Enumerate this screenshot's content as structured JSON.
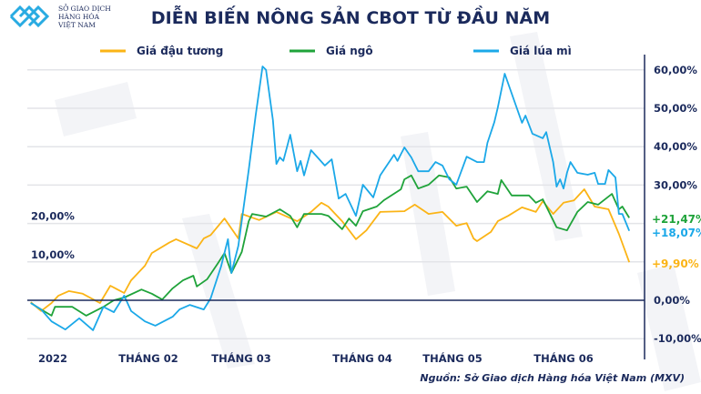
{
  "logo": {
    "lines": [
      "SỞ GIAO DỊCH",
      "HÀNG HÓA",
      "VIỆT NAM"
    ],
    "color": "#29abe2"
  },
  "chart_data": {
    "type": "line",
    "title": "DIỄN BIẾN NÔNG SẢN CBOT TỪ ĐẦU NĂM",
    "source": "Nguồn: Sở Giao dịch Hàng hóa Việt Nam (MXV)",
    "x_tick_labels": [
      "2022",
      "THÁNG 02",
      "THÁNG 03",
      "THÁNG 04",
      "THÁNG 05",
      "THÁNG 06"
    ],
    "y_ticks": [
      60,
      50,
      40,
      30,
      20,
      10,
      0,
      -10
    ],
    "y_tick_labels": [
      "60,00%",
      "50,00%",
      "40,00%",
      "30,00%",
      "20,00%",
      "10,00%",
      "0,00%",
      "-10,00%"
    ],
    "ylim": [
      -10,
      60
    ],
    "ylabel": "",
    "xlabel": "",
    "grid": true,
    "legend_placement": "top",
    "x_year": 2022,
    "series": [
      {
        "name": "Giá đậu tương",
        "color": "#fbb416",
        "end_label": "+9,90%",
        "points": [
          [
            "01-02",
            -0.5
          ],
          [
            "01-05",
            -2.8
          ],
          [
            "01-08",
            -0.7
          ],
          [
            "01-10",
            1.2
          ],
          [
            "01-13",
            2.4
          ],
          [
            "01-17",
            1.7
          ],
          [
            "01-22",
            -0.7
          ],
          [
            "01-25",
            3.8
          ],
          [
            "01-29",
            1.9
          ],
          [
            "01-31",
            5.2
          ],
          [
            "02-04",
            9
          ],
          [
            "02-06",
            12.3
          ],
          [
            "02-11",
            15
          ],
          [
            "02-13",
            15.9
          ],
          [
            "02-19",
            13.5
          ],
          [
            "02-21",
            16.1
          ],
          [
            "02-23",
            17
          ],
          [
            "02-27",
            21.3
          ],
          [
            "03-03",
            16.1
          ],
          [
            "03-04",
            22.5
          ],
          [
            "03-09",
            20.9
          ],
          [
            "03-14",
            23
          ],
          [
            "03-20",
            20.6
          ],
          [
            "03-24",
            23
          ],
          [
            "03-27",
            25.4
          ],
          [
            "03-29",
            24.4
          ],
          [
            "04-02",
            20.6
          ],
          [
            "04-06",
            15.9
          ],
          [
            "04-09",
            18.2
          ],
          [
            "04-13",
            23
          ],
          [
            "04-20",
            23.2
          ],
          [
            "04-23",
            24.9
          ],
          [
            "04-27",
            22.5
          ],
          [
            "05-01",
            23
          ],
          [
            "05-05",
            19.4
          ],
          [
            "05-08",
            20.1
          ],
          [
            "05-10",
            16.1
          ],
          [
            "05-11",
            15.4
          ],
          [
            "05-15",
            17.8
          ],
          [
            "05-17",
            20.6
          ],
          [
            "05-20",
            22
          ],
          [
            "05-24",
            24.2
          ],
          [
            "05-28",
            23
          ],
          [
            "05-30",
            25.8
          ],
          [
            "06-02",
            22.5
          ],
          [
            "06-05",
            25.4
          ],
          [
            "06-08",
            26
          ],
          [
            "06-11",
            28.9
          ],
          [
            "06-14",
            24.4
          ],
          [
            "06-18",
            23.7
          ],
          [
            "06-21",
            17.3
          ],
          [
            "06-24",
            9.9
          ]
        ]
      },
      {
        "name": "Giá ngô",
        "color": "#1fa33a",
        "end_label": "+21,47%",
        "points": [
          [
            "01-02",
            -0.7
          ],
          [
            "01-05",
            -2.4
          ],
          [
            "01-08",
            -4
          ],
          [
            "01-09",
            -1.7
          ],
          [
            "01-14",
            -1.7
          ],
          [
            "01-18",
            -4
          ],
          [
            "01-23",
            -1.7
          ],
          [
            "01-26",
            0
          ],
          [
            "01-29",
            0.7
          ],
          [
            "02-03",
            2.8
          ],
          [
            "02-06",
            1.7
          ],
          [
            "02-09",
            0.2
          ],
          [
            "02-12",
            3.1
          ],
          [
            "02-15",
            5.2
          ],
          [
            "02-18",
            6.4
          ],
          [
            "02-19",
            3.6
          ],
          [
            "02-22",
            5.5
          ],
          [
            "02-25",
            9.5
          ],
          [
            "02-27",
            12.3
          ],
          [
            "03-01",
            7.1
          ],
          [
            "03-04",
            12.6
          ],
          [
            "03-06",
            20.6
          ],
          [
            "03-07",
            22.5
          ],
          [
            "03-11",
            21.8
          ],
          [
            "03-15",
            23.7
          ],
          [
            "03-18",
            22
          ],
          [
            "03-20",
            19
          ],
          [
            "03-22",
            22.5
          ],
          [
            "03-27",
            22.5
          ],
          [
            "03-29",
            22
          ],
          [
            "04-02",
            18.5
          ],
          [
            "04-04",
            21.3
          ],
          [
            "04-06",
            19.4
          ],
          [
            "04-08",
            23.2
          ],
          [
            "04-12",
            24.4
          ],
          [
            "04-14",
            26
          ],
          [
            "04-19",
            28.9
          ],
          [
            "04-20",
            31.5
          ],
          [
            "04-22",
            32.5
          ],
          [
            "04-24",
            29.1
          ],
          [
            "04-27",
            30.1
          ],
          [
            "04-30",
            32.5
          ],
          [
            "05-03",
            32
          ],
          [
            "05-05",
            29.1
          ],
          [
            "05-08",
            29.6
          ],
          [
            "05-11",
            25.6
          ],
          [
            "05-14",
            28.4
          ],
          [
            "05-17",
            27.7
          ],
          [
            "05-18",
            31.3
          ],
          [
            "05-21",
            27.3
          ],
          [
            "05-26",
            27.3
          ],
          [
            "05-28",
            25.4
          ],
          [
            "05-30",
            26.3
          ],
          [
            "06-03",
            19
          ],
          [
            "06-06",
            18.2
          ],
          [
            "06-09",
            23
          ],
          [
            "06-12",
            25.6
          ],
          [
            "06-15",
            24.9
          ],
          [
            "06-19",
            27.7
          ],
          [
            "06-21",
            23.7
          ],
          [
            "06-22",
            24.4
          ],
          [
            "06-24",
            21.47
          ]
        ]
      },
      {
        "name": "Giá lúa mì",
        "color": "#1ba8e8",
        "end_label": "+18,07%",
        "points": [
          [
            "01-02",
            -0.7
          ],
          [
            "01-05",
            -2.4
          ],
          [
            "01-08",
            -5.5
          ],
          [
            "01-12",
            -7.6
          ],
          [
            "01-16",
            -4.7
          ],
          [
            "01-20",
            -7.8
          ],
          [
            "01-23",
            -1.7
          ],
          [
            "01-26",
            -3.1
          ],
          [
            "01-29",
            1.2
          ],
          [
            "01-31",
            -2.8
          ],
          [
            "02-04",
            -5.5
          ],
          [
            "02-07",
            -6.6
          ],
          [
            "02-12",
            -4.3
          ],
          [
            "02-14",
            -2.4
          ],
          [
            "02-17",
            -1.2
          ],
          [
            "02-21",
            -2.4
          ],
          [
            "02-23",
            0.5
          ],
          [
            "02-26",
            8.8
          ],
          [
            "02-28",
            15.9
          ],
          [
            "03-01",
            7.1
          ],
          [
            "03-03",
            14.2
          ],
          [
            "03-06",
            33.9
          ],
          [
            "03-08",
            48.1
          ],
          [
            "03-10",
            60.9
          ],
          [
            "03-11",
            60
          ],
          [
            "03-13",
            46.9
          ],
          [
            "03-14",
            35.5
          ],
          [
            "03-15",
            37.2
          ],
          [
            "03-16",
            36.3
          ],
          [
            "03-18",
            43.1
          ],
          [
            "03-20",
            33.6
          ],
          [
            "03-21",
            36.3
          ],
          [
            "03-22",
            32.5
          ],
          [
            "03-24",
            39.1
          ],
          [
            "03-28",
            35.1
          ],
          [
            "03-30",
            36.7
          ],
          [
            "04-01",
            26.5
          ],
          [
            "04-03",
            27.7
          ],
          [
            "04-06",
            22
          ],
          [
            "04-08",
            30.1
          ],
          [
            "04-11",
            26.8
          ],
          [
            "04-13",
            32.5
          ],
          [
            "04-17",
            37.9
          ],
          [
            "04-18",
            36.3
          ],
          [
            "04-20",
            39.8
          ],
          [
            "04-22",
            37.2
          ],
          [
            "04-24",
            33.6
          ],
          [
            "04-27",
            33.6
          ],
          [
            "04-29",
            36
          ],
          [
            "05-01",
            35.1
          ],
          [
            "05-03",
            31.5
          ],
          [
            "05-05",
            30.1
          ],
          [
            "05-08",
            37.4
          ],
          [
            "05-11",
            36
          ],
          [
            "05-13",
            36
          ],
          [
            "05-14",
            41
          ],
          [
            "05-16",
            46.4
          ],
          [
            "05-17",
            50.2
          ],
          [
            "05-19",
            59
          ],
          [
            "05-24",
            46.2
          ],
          [
            "05-25",
            48.1
          ],
          [
            "05-27",
            43.4
          ],
          [
            "05-30",
            42.2
          ],
          [
            "05-31",
            43.8
          ],
          [
            "06-02",
            36
          ],
          [
            "06-03",
            29.6
          ],
          [
            "06-04",
            31.5
          ],
          [
            "06-05",
            29.1
          ],
          [
            "06-06",
            33.2
          ],
          [
            "06-07",
            36
          ],
          [
            "06-09",
            33.2
          ],
          [
            "06-12",
            32.7
          ],
          [
            "06-14",
            33.2
          ],
          [
            "06-15",
            30.3
          ],
          [
            "06-17",
            30.3
          ],
          [
            "06-18",
            33.9
          ],
          [
            "06-20",
            32
          ],
          [
            "06-21",
            22.5
          ],
          [
            "06-22",
            22.5
          ],
          [
            "06-24",
            18.07
          ]
        ]
      }
    ]
  }
}
